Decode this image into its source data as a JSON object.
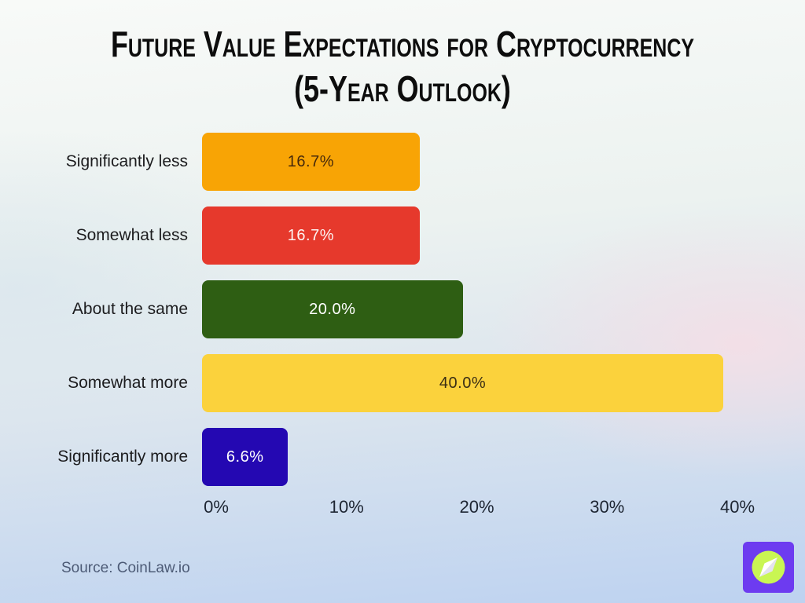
{
  "title": {
    "line1": "Future Value Expectations for Cryptocurrency",
    "line2": "(5-Year Outlook)"
  },
  "source": "Source: CoinLaw.io",
  "logo": {
    "name": "coinlaw-compass-logo",
    "bg_color": "#6d3bf0",
    "circle_color": "#c9f653",
    "needle_light": "#ffffff",
    "needle_shade": "#e4e2f0"
  },
  "chart_data": {
    "type": "bar",
    "orientation": "horizontal",
    "title": "Future Value Expectations for Cryptocurrency (5-Year Outlook)",
    "xlabel": "",
    "ylabel": "",
    "xlim": [
      0,
      40
    ],
    "grid": false,
    "legend": null,
    "categories": [
      "Significantly less",
      "Somewhat less",
      "About the same",
      "Somewhat more",
      "Significantly more"
    ],
    "values": [
      16.7,
      16.7,
      20.0,
      40.0,
      6.6
    ],
    "value_labels": [
      "16.7%",
      "16.7%",
      "20.0%",
      "40.0%",
      "6.6%"
    ],
    "bar_colors": [
      "#f8a405",
      "#e6392c",
      "#2e5e13",
      "#fbd23c",
      "#2408b2"
    ],
    "value_label_colors": [
      "#46290b",
      "#fdf4f2",
      "#ffffff",
      "#3a2e14",
      "#ffffff"
    ],
    "x_ticks": [
      "0%",
      "10%",
      "20%",
      "30%",
      "40%"
    ]
  }
}
